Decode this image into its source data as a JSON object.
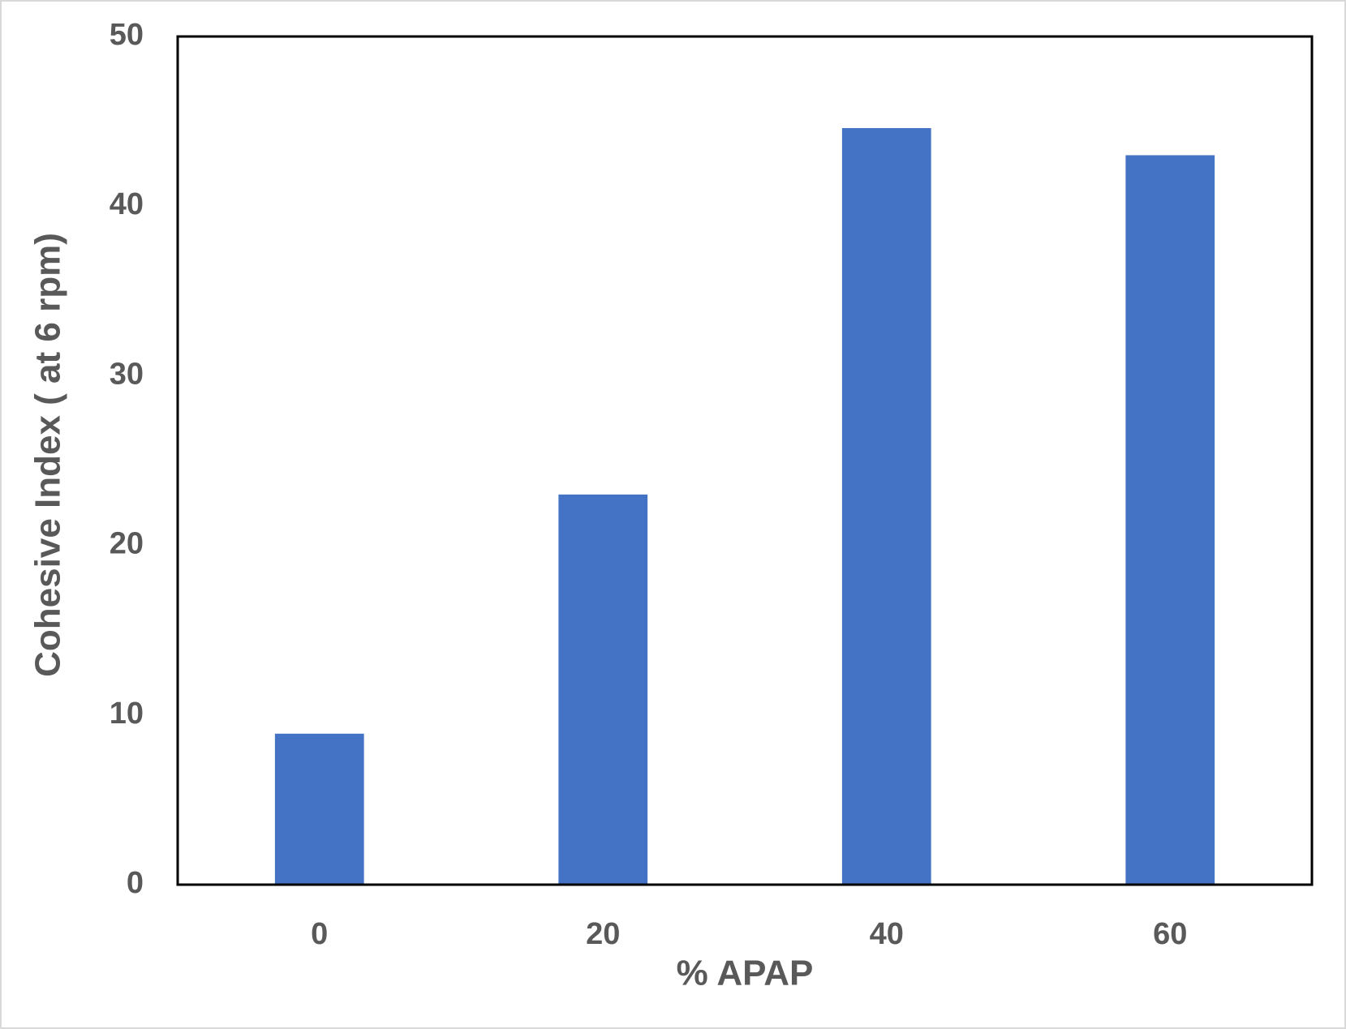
{
  "chart_data": {
    "type": "bar",
    "categories": [
      "0",
      "20",
      "40",
      "60"
    ],
    "values": [
      8.9,
      23,
      44.6,
      43
    ],
    "color": "#4472c4",
    "xlabel": "% APAP",
    "ylabel": "Cohesive Index ( at 6 rpm)",
    "ylim": [
      0,
      50
    ],
    "yticks": [
      0,
      10,
      20,
      30,
      40,
      50
    ],
    "grid": false
  }
}
